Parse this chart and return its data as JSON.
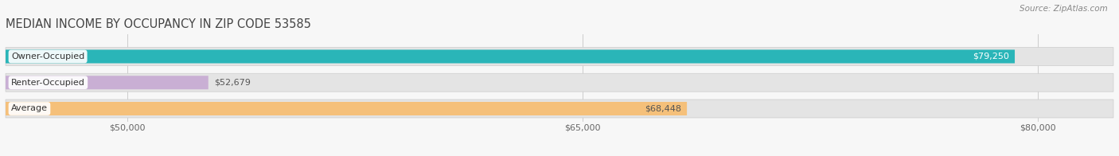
{
  "title": "MEDIAN INCOME BY OCCUPANCY IN ZIP CODE 53585",
  "source": "Source: ZipAtlas.com",
  "categories": [
    "Owner-Occupied",
    "Renter-Occupied",
    "Average"
  ],
  "values": [
    79250,
    52679,
    68448
  ],
  "bar_colors": [
    "#2ab5b8",
    "#c9afd4",
    "#f5c07a"
  ],
  "bar_labels": [
    "$79,250",
    "$52,679",
    "$68,448"
  ],
  "xmin": 46000,
  "xmax": 82500,
  "xticks": [
    50000,
    65000,
    80000
  ],
  "xtick_labels": [
    "$50,000",
    "$65,000",
    "$80,000"
  ],
  "background_color": "#f7f7f7",
  "bar_bg_color": "#e4e4e4",
  "title_fontsize": 10.5,
  "label_fontsize": 8,
  "value_fontsize": 8,
  "source_fontsize": 7.5
}
